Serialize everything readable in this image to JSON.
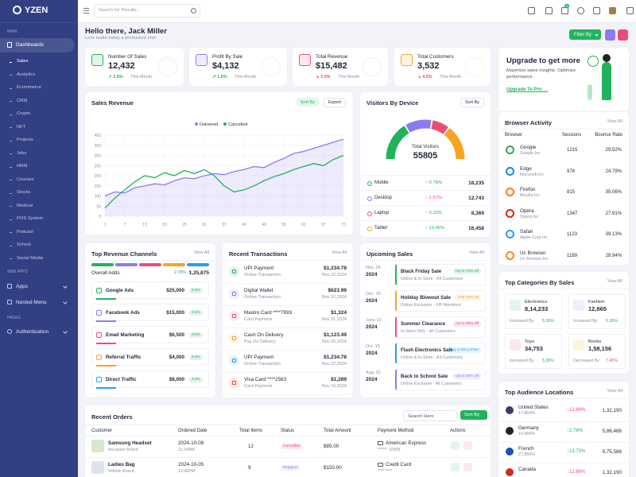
{
  "sidebar": {
    "logo": "YZEN",
    "main": "MAIN",
    "dashboards": "Dashboards",
    "sub_items": [
      "Sales",
      "Analytics",
      "Ecommerce",
      "CRM",
      "Crypto",
      "NFT",
      "Projects",
      "Jobs",
      "HRM",
      "Courses",
      "Stocks",
      "Medical",
      "POS System",
      "Podcast",
      "School",
      "Social Media"
    ],
    "web_apps": "WEB APPS",
    "apps": "Apps",
    "nested_menu": "Nested Menu",
    "pages": "PAGES",
    "authentication": "Authentication"
  },
  "header": {
    "search_placeholder": "Search for Results...",
    "cart_badge": "5"
  },
  "greeting": {
    "title": "Hello there, Jack Miller",
    "subtitle": "Let's make today a productive one!",
    "filter": "Filter By"
  },
  "stats": [
    {
      "label": "Number Of Sales",
      "value": "12,432",
      "change": "↗ 2.5%",
      "period": "This Month",
      "color": "#21b35c"
    },
    {
      "label": "Profit By Sale",
      "value": "$4,132",
      "change": "↗ 1.5%",
      "period": "This Month",
      "color": "#8b7bf0"
    },
    {
      "label": "Total Revenue",
      "value": "$15,482",
      "change": "↘ 3.4%",
      "period": "This Month",
      "color": "#ec4d78"
    },
    {
      "label": "Total Customers",
      "value": "3,532",
      "change": "↘ 4.5%",
      "period": "This Month",
      "color": "#f5a524"
    }
  ],
  "upgrade": {
    "title": "Upgrade to get more",
    "text": "Maximize sales insights. Optimize performance.",
    "link": "Upgrade To Pro →"
  },
  "chart_data": [
    {
      "type": "line",
      "title": "Sales Revenue",
      "controls": [
        "Sort By",
        "Export"
      ],
      "x": [
        1,
        4,
        7,
        10,
        13,
        16,
        19,
        22,
        25,
        28,
        31,
        34,
        37,
        40,
        43,
        46,
        49,
        52,
        55,
        58,
        61,
        64,
        67,
        70,
        73
      ],
      "series": [
        {
          "name": "Delivered",
          "color": "#8b7bf0",
          "area": true,
          "values": [
            100,
            120,
            115,
            140,
            150,
            160,
            155,
            175,
            190,
            185,
            200,
            210,
            205,
            220,
            230,
            245,
            240,
            265,
            285,
            310,
            320,
            335,
            350,
            365,
            380
          ]
        },
        {
          "name": "Cancelled",
          "color": "#21b35c",
          "area": false,
          "values": [
            40,
            90,
            130,
            170,
            200,
            190,
            215,
            200,
            225,
            210,
            230,
            200,
            150,
            120,
            130,
            150,
            175,
            195,
            210,
            230,
            245,
            260,
            250,
            280,
            300
          ]
        }
      ],
      "xlim": [
        1,
        73
      ],
      "xticks": [
        1,
        7,
        13,
        19,
        25,
        31,
        37,
        43,
        49,
        55,
        61,
        67,
        73
      ],
      "ylim": [
        0,
        400
      ],
      "yticks": [
        0,
        50,
        100,
        150,
        200,
        250,
        300,
        350,
        400
      ],
      "grid": true
    },
    {
      "type": "gauge",
      "title": "Visitors By Device",
      "controls": [
        "Sort By"
      ],
      "center_label": "Total Visitors",
      "total": 55805,
      "categories": [
        "Mobile",
        "Desktop",
        "Laptop",
        "Tablet"
      ],
      "values": [
        18235,
        12743,
        8369,
        16458
      ],
      "value_labels": [
        "18,235",
        "12,743",
        "8,369",
        "16,458"
      ],
      "changes": [
        "↑ 0.78%",
        "↓ 1.57%",
        "↑ 0.32%",
        "↑ 19.45%"
      ],
      "change_colors": [
        "#21b35c",
        "#ec4d78",
        "#21b35c",
        "#21b35c"
      ],
      "colors": [
        "#21b35c",
        "#8b7bf0",
        "#ec4d78",
        "#f5a524"
      ]
    }
  ],
  "browser_activity": {
    "title": "Browser Activity",
    "view_all": "View All",
    "columns": [
      "Browser",
      "Sessions",
      "Bounce Rate"
    ],
    "rows": [
      {
        "name": "Google",
        "company": "Google.Inc",
        "sessions": "1215",
        "bounce": "29.52%",
        "color": "#34a853"
      },
      {
        "name": "Edge",
        "company": "Microsoft.Inc",
        "sessions": "978",
        "bounce": "24.79%",
        "color": "#1e88e5"
      },
      {
        "name": "Firefox",
        "company": "Mozilla.Inc",
        "sessions": "815",
        "bounce": "35.06%",
        "color": "#ff7a1a"
      },
      {
        "name": "Opera",
        "company": "Opera.Inc",
        "sessions": "1347",
        "bounce": "27.91%",
        "color": "#e0201b"
      },
      {
        "name": "Safari",
        "company": "Apple Corp.Inc",
        "sessions": "1123",
        "bounce": "39.13%",
        "color": "#2c9cf2"
      },
      {
        "name": "Uc Browser",
        "company": "Uc Browser.Inc",
        "sessions": "1189",
        "bounce": "28.94%",
        "color": "#f28b1c"
      }
    ]
  },
  "revenue_channels": {
    "title": "Top Revenue Channels",
    "view_all": "View All",
    "overall_label": "Overall Adds",
    "overall_change": "2.78% ↗",
    "overall_value": "1,25,875",
    "rows": [
      {
        "name": "Google Ads",
        "amount": "$25,000",
        "share": "3.5%",
        "color": "#21b35c"
      },
      {
        "name": "Facebook Ads",
        "amount": "$15,000",
        "share": "2.8%",
        "color": "#8b7bf0"
      },
      {
        "name": "Email Marketing",
        "amount": "$6,500",
        "share": "3.0%",
        "color": "#ec4d78"
      },
      {
        "name": "Referral Traffic",
        "amount": "$4,000",
        "share": "2.5%",
        "color": "#f5a524"
      },
      {
        "name": "Direct Traffic",
        "amount": "$8,000",
        "share": "4.0%",
        "color": "#2c9cf2"
      }
    ]
  },
  "transactions": {
    "title": "Recent Transactions",
    "view_all": "View All",
    "rows": [
      {
        "name": "UPI Payment",
        "type": "Online Transaction",
        "amount": "$1,234.78",
        "date": "Nov 22,2024",
        "color": "#21b35c"
      },
      {
        "name": "Digital Wallet",
        "type": "Online Transaction",
        "amount": "$623.99",
        "date": "Nov 22,2024",
        "color": "#8b7bf0"
      },
      {
        "name": "Mastro Card ****7893",
        "type": "Card Payment",
        "amount": "$1,324",
        "date": "Nov 21,2024",
        "color": "#ec4d78"
      },
      {
        "name": "Cash On Delivery",
        "type": "Pay On Delivery",
        "amount": "$1,123.49",
        "date": "Nov 20,2024",
        "color": "#f5a524"
      },
      {
        "name": "UPI Payment",
        "type": "Online Transaction",
        "amount": "$1,234.78",
        "date": "Nov 22,2024",
        "color": "#2c9cf2"
      },
      {
        "name": "Visa Card ****2563",
        "type": "Card Payment",
        "amount": "$1,289",
        "date": "Nov 16,2024",
        "color": "#e8542c"
      }
    ]
  },
  "upcoming_sales": {
    "title": "Upcoming Sales",
    "view_all": "View All",
    "rows": [
      {
        "date": "Nov. 24",
        "year": "2024",
        "name": "Black Friday Sale",
        "offer": "Up to 70% off",
        "audience": "Online & In-Store - All Customers",
        "color": "#21b35c"
      },
      {
        "date": "Dec. 20",
        "year": "2024",
        "name": "Holiday Blowout Sale",
        "offer": "Flat 40% off",
        "audience": "Online Exclusive - VIP Members",
        "color": "#f5a524"
      },
      {
        "date": "June 10",
        "year": "2024",
        "name": "Summer Clearance",
        "offer": "Up to 50% off",
        "audience": "In-Store Only - All Customers",
        "color": "#ec4d78"
      },
      {
        "date": "Oct. 15",
        "year": "2024",
        "name": "Flash Electronics Sale",
        "offer": "Buy 1 Get 1 Free",
        "audience": "Online & In-Store - All Customers",
        "color": "#2c9cf2"
      },
      {
        "date": "Aug. 01",
        "year": "2024",
        "name": "Back to School Sale",
        "offer": "Up to 30% off",
        "audience": "Online Exclusive - All Customers",
        "color": "#8b7bf0"
      }
    ]
  },
  "categories": {
    "title": "Top Categories By Sales",
    "view_all": "View All",
    "items": [
      {
        "name": "Electronics",
        "value": "8,14,233",
        "change_label": "Increased By",
        "change": "5.36%",
        "color": "#21b35c"
      },
      {
        "name": "Fashion",
        "value": "12,865",
        "change_label": "Increased By",
        "change": "5.36%",
        "color": "#8b7bf0"
      },
      {
        "name": "Toys",
        "value": "34,753",
        "change_label": "Increased By",
        "change": "5.36%",
        "color": "#ec4d78"
      },
      {
        "name": "Books",
        "value": "1,58,156",
        "change_label": "Decreased By",
        "change": "7.45%",
        "color": "#f5a524"
      }
    ],
    "change_colors": [
      "#21b35c",
      "#21b35c",
      "#21b35c",
      "#ec4d78"
    ]
  },
  "audience": {
    "title": "Top Audience Locations",
    "view_all": "View All",
    "rows": [
      {
        "country": "United States",
        "share": "17.864%",
        "change": "↓12.86%",
        "value": "1,32,190",
        "change_color": "#ec4d78",
        "flag": "#3c3b6e"
      },
      {
        "country": "Germany",
        "share": "16.984%",
        "change": "↑2.76%",
        "value": "5,86,486",
        "change_color": "#21b35c",
        "flag": "#222222"
      },
      {
        "country": "French",
        "share": "27.856%",
        "change": "↑13.73%",
        "value": "9,75,586",
        "change_color": "#21b35c",
        "flag": "#1e4fb0"
      },
      {
        "country": "Canada",
        "change": "↓12.86%",
        "value": "1,32,190",
        "change_color": "#ec4d78",
        "flag": "#d52b1e"
      }
    ]
  },
  "orders": {
    "title": "Recent Orders",
    "search": "Search Here",
    "sort": "Sort By",
    "columns": [
      "Customer",
      "Ordered Date",
      "Total Items",
      "Status",
      "Total Amount",
      "Payment Method",
      "Actions"
    ],
    "rows": [
      {
        "product": "Samsung Headset",
        "brand": "Accusam Brand",
        "date": "2024-10-08",
        "time": "11:24AM",
        "items": "12",
        "status": "Cancelled",
        "status_color": "#ec4d78",
        "amount": "$85.00",
        "method": "American Express",
        "card": "****** 10005"
      },
      {
        "product": "Ladies Bag",
        "brand": "Velinlin Brand",
        "date": "2024-10-05",
        "time": "12:45PM",
        "items": "9",
        "status": "Shipped",
        "status_color": "#8b7bf0",
        "amount": "$150.00",
        "method": "Credit Card",
        "card": "**** ****"
      }
    ]
  }
}
